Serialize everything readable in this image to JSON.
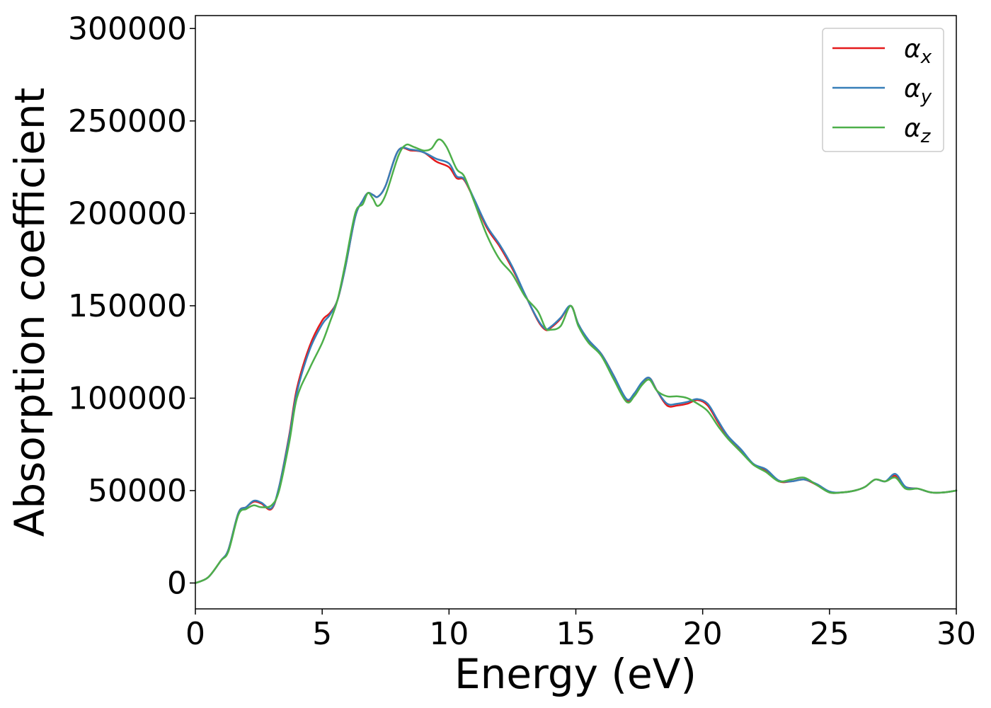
{
  "chart_data": {
    "type": "line",
    "xlabel": "Energy (eV)",
    "ylabel": "Absorption coefficient",
    "xlim": [
      0,
      30
    ],
    "ylim": [
      -14000,
      307000
    ],
    "xticks": [
      0,
      5,
      10,
      15,
      20,
      25,
      30
    ],
    "yticks": [
      0,
      50000,
      100000,
      150000,
      200000,
      250000,
      300000
    ],
    "grid": false,
    "legend_position": "top-right",
    "series": [
      {
        "name": "α",
        "subscript": "x",
        "color": "#e41a1c",
        "x": [
          0,
          0.5,
          1.0,
          1.3,
          1.7,
          2.0,
          2.3,
          2.6,
          3.0,
          3.3,
          3.7,
          4.0,
          4.5,
          5.0,
          5.3,
          5.6,
          5.9,
          6.3,
          6.6,
          6.8,
          7.0,
          7.2,
          7.5,
          8.0,
          8.5,
          9.0,
          9.5,
          10.0,
          10.3,
          10.6,
          11.0,
          11.5,
          12.0,
          12.5,
          13.0,
          13.5,
          13.8,
          14.0,
          14.4,
          14.8,
          15.1,
          15.5,
          16.0,
          16.5,
          17.0,
          17.3,
          17.6,
          17.9,
          18.2,
          18.6,
          19.0,
          19.4,
          19.8,
          20.2,
          20.6,
          21.0,
          21.5,
          22.0,
          22.5,
          23.0,
          23.5,
          24.0,
          24.5,
          25.0,
          25.5,
          26.0,
          26.4,
          26.8,
          27.2,
          27.6,
          28.0,
          28.5,
          29.0,
          29.5,
          30.0
        ],
        "y": [
          0,
          3000,
          12000,
          18000,
          38000,
          41000,
          44000,
          43000,
          40000,
          52000,
          80000,
          105000,
          128000,
          142000,
          146000,
          153000,
          170000,
          198000,
          207000,
          211000,
          210000,
          209000,
          215000,
          234000,
          234000,
          233000,
          228000,
          225000,
          219000,
          218000,
          207000,
          192000,
          182000,
          170000,
          156000,
          142000,
          137000,
          138000,
          143000,
          150000,
          140000,
          131000,
          124000,
          112000,
          99000,
          102000,
          108000,
          111000,
          104000,
          96000,
          96000,
          97000,
          99000,
          96000,
          87000,
          79000,
          72000,
          64000,
          61000,
          55000,
          55000,
          56000,
          53000,
          49000,
          49000,
          50000,
          52000,
          56000,
          55000,
          58000,
          52000,
          51000,
          49000,
          49000,
          50000
        ]
      },
      {
        "name": "α",
        "subscript": "y",
        "color": "#377eb8",
        "x": [
          0,
          0.5,
          1.0,
          1.3,
          1.7,
          2.0,
          2.3,
          2.6,
          3.0,
          3.3,
          3.7,
          4.0,
          4.5,
          5.0,
          5.3,
          5.6,
          5.9,
          6.3,
          6.6,
          6.8,
          7.0,
          7.2,
          7.5,
          8.0,
          8.5,
          9.0,
          9.5,
          10.0,
          10.3,
          10.6,
          11.0,
          11.5,
          12.0,
          12.5,
          13.0,
          13.5,
          13.8,
          14.0,
          14.4,
          14.8,
          15.1,
          15.5,
          16.0,
          16.5,
          17.0,
          17.3,
          17.6,
          17.9,
          18.2,
          18.6,
          19.0,
          19.4,
          19.8,
          20.2,
          20.6,
          21.0,
          21.5,
          22.0,
          22.5,
          23.0,
          23.5,
          24.0,
          24.5,
          25.0,
          25.5,
          26.0,
          26.4,
          26.8,
          27.2,
          27.6,
          28.0,
          28.5,
          29.0,
          29.5,
          30.0
        ],
        "y": [
          0,
          3000,
          12000,
          18000,
          38000,
          41000,
          44500,
          43500,
          40500,
          52000,
          79000,
          103000,
          126000,
          140000,
          145000,
          153000,
          170000,
          198000,
          207000,
          211000,
          210000,
          209000,
          215000,
          234000,
          234500,
          233000,
          229500,
          227000,
          220000,
          218500,
          207500,
          193000,
          183000,
          171000,
          156000,
          142500,
          137500,
          138500,
          143500,
          150000,
          140000,
          131500,
          124000,
          112000,
          99500,
          102500,
          108500,
          111000,
          104000,
          97000,
          97000,
          98000,
          99500,
          97000,
          88000,
          79500,
          72500,
          64500,
          61500,
          55500,
          55000,
          56000,
          53500,
          49500,
          49000,
          50000,
          52000,
          56000,
          55000,
          59000,
          52000,
          51000,
          49000,
          49000,
          50000
        ]
      },
      {
        "name": "α",
        "subscript": "z",
        "color": "#4daf4a",
        "x": [
          0,
          0.5,
          1.0,
          1.3,
          1.7,
          2.0,
          2.3,
          2.6,
          3.0,
          3.3,
          3.7,
          4.0,
          4.5,
          5.0,
          5.3,
          5.6,
          5.9,
          6.3,
          6.6,
          6.8,
          7.0,
          7.2,
          7.5,
          8.0,
          8.3,
          8.6,
          9.0,
          9.3,
          9.6,
          9.9,
          10.3,
          10.6,
          11.0,
          11.5,
          12.0,
          12.5,
          13.0,
          13.5,
          13.8,
          14.0,
          14.4,
          14.8,
          15.1,
          15.5,
          16.0,
          16.5,
          17.0,
          17.3,
          17.6,
          17.9,
          18.2,
          18.6,
          19.0,
          19.4,
          19.8,
          20.2,
          20.6,
          21.0,
          21.5,
          22.0,
          22.5,
          23.0,
          23.5,
          24.0,
          24.5,
          25.0,
          25.5,
          26.0,
          26.4,
          26.8,
          27.2,
          27.6,
          28.0,
          28.5,
          29.0,
          29.5,
          30.0
        ],
        "y": [
          0,
          3000,
          12000,
          17000,
          37000,
          40000,
          42000,
          41000,
          42000,
          50000,
          76000,
          100000,
          116000,
          130000,
          141000,
          153000,
          172000,
          200000,
          205000,
          211000,
          208000,
          204000,
          210000,
          231000,
          237000,
          236000,
          234000,
          235000,
          240000,
          236000,
          224000,
          220000,
          206000,
          188000,
          175000,
          167000,
          155000,
          147000,
          138000,
          137000,
          139000,
          150000,
          139000,
          130000,
          123000,
          110000,
          98000,
          101000,
          107000,
          110000,
          104000,
          101000,
          101000,
          100000,
          97000,
          93000,
          85000,
          78000,
          71000,
          64000,
          60000,
          55000,
          56000,
          57000,
          53000,
          49000,
          49000,
          50000,
          52000,
          56000,
          55000,
          57000,
          51000,
          51000,
          49000,
          49000,
          50000
        ]
      }
    ]
  }
}
